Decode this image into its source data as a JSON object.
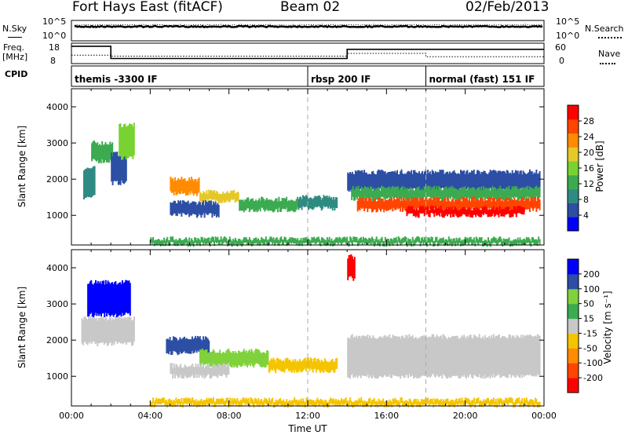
{
  "header": {
    "station": "Fort Hays East (fitACF)",
    "beam": "Beam 02",
    "date": "02/Feb/2013"
  },
  "noise_panel": {
    "left_label": "N.Sky",
    "right_label": "N.Search",
    "left_ticks": [
      "10^5",
      "10^0"
    ],
    "right_ticks": [
      "10^5",
      "10^0"
    ]
  },
  "freq_panel": {
    "left_label_1": "Freq.",
    "left_label_2": "[MHz]",
    "right_label": "Nave",
    "left_ticks": [
      "18",
      "8"
    ],
    "right_ticks": [
      "60",
      "0"
    ],
    "freq_steps": [
      {
        "t_start": 0.0,
        "t_end": 2.0,
        "mhz": 16.5
      },
      {
        "t_start": 2.0,
        "t_end": 14.0,
        "mhz": 10.5
      },
      {
        "t_start": 14.0,
        "t_end": 24.0,
        "mhz": 15.0
      }
    ],
    "nave_steps": [
      {
        "t_start": 0.0,
        "t_end": 2.0,
        "nave": 25
      },
      {
        "t_start": 2.0,
        "t_end": 14.0,
        "nave": 22
      },
      {
        "t_start": 14.0,
        "t_end": 18.0,
        "nave": 30
      },
      {
        "t_start": 18.0,
        "t_end": 24.0,
        "nave": 20
      }
    ]
  },
  "cpid": {
    "label": "CPID",
    "segments": [
      {
        "t_start": 0.0,
        "text": "themis -3300 IF"
      },
      {
        "t_start": 12.0,
        "text": "rbsp 200 IF"
      },
      {
        "t_start": 18.0,
        "text": "normal (fast) 151 IF"
      }
    ]
  },
  "chart_data": [
    {
      "type": "heatmap",
      "name": "power",
      "ylabel": "Slant Range [km]",
      "xlabel": "",
      "xlim": [
        0,
        24
      ],
      "ylim": [
        180,
        4500
      ],
      "yticks": [
        "1000",
        "2000",
        "3000",
        "4000"
      ],
      "colorbar_label": "Power [dB]",
      "colorbar_ticks": [
        "28",
        "24",
        "20",
        "16",
        "12",
        "8",
        "4"
      ],
      "colorbar_colors": [
        "#0000ff",
        "#2c4ea4",
        "#2e8b82",
        "#3cab50",
        "#78d232",
        "#e5c828",
        "#ff8c00",
        "#ff4500",
        "#ff0000"
      ],
      "bands": [
        {
          "t0": 0.6,
          "t1": 1.2,
          "r0": 1500,
          "r1": 2300,
          "c": "#2e8b82"
        },
        {
          "t0": 1.0,
          "t1": 2.1,
          "r0": 2500,
          "r1": 3000,
          "c": "#3cab50"
        },
        {
          "t0": 2.0,
          "t1": 2.8,
          "r0": 1900,
          "r1": 2700,
          "c": "#2c4ea4"
        },
        {
          "t0": 2.4,
          "t1": 3.2,
          "r0": 2600,
          "r1": 3500,
          "c": "#78d232"
        },
        {
          "t0": 5.0,
          "t1": 6.5,
          "r0": 1600,
          "r1": 2000,
          "c": "#ff8c00"
        },
        {
          "t0": 6.5,
          "t1": 8.5,
          "r0": 1400,
          "r1": 1650,
          "c": "#e5c828"
        },
        {
          "t0": 5.0,
          "t1": 7.5,
          "r0": 1000,
          "r1": 1350,
          "c": "#2c4ea4"
        },
        {
          "t0": 8.5,
          "t1": 11.5,
          "r0": 1150,
          "r1": 1450,
          "c": "#3cab50"
        },
        {
          "t0": 11.5,
          "t1": 13.5,
          "r0": 1200,
          "r1": 1500,
          "c": "#2e8b82"
        },
        {
          "t0": 14.0,
          "t1": 23.8,
          "r0": 1700,
          "r1": 2200,
          "c": "#2c4ea4"
        },
        {
          "t0": 14.2,
          "t1": 23.8,
          "r0": 1450,
          "r1": 1750,
          "c": "#3cab50"
        },
        {
          "t0": 14.5,
          "t1": 23.8,
          "r0": 1150,
          "r1": 1450,
          "c": "#ff4500"
        },
        {
          "t0": 17.0,
          "t1": 23.0,
          "r0": 1000,
          "r1": 1200,
          "c": "#ff0000"
        },
        {
          "t0": 4.0,
          "t1": 23.8,
          "r0": 200,
          "r1": 350,
          "c": "#3cab50"
        }
      ]
    },
    {
      "type": "heatmap",
      "name": "velocity",
      "ylabel": "Slant Range [km]",
      "xlabel": "Time UT",
      "xlim": [
        0,
        24
      ],
      "ylim": [
        180,
        4500
      ],
      "yticks": [
        "1000",
        "2000",
        "3000",
        "4000"
      ],
      "xticks": [
        "00:00",
        "04:00",
        "08:00",
        "12:00",
        "16:00",
        "20:00",
        "00:00"
      ],
      "colorbar_label": "Velocity [m s⁻¹]",
      "colorbar_ticks": [
        "200",
        "100",
        "50",
        "15",
        "-15",
        "-50",
        "-100",
        "-200"
      ],
      "colorbar_colors": [
        "#ff0000",
        "#ff4500",
        "#ff8c00",
        "#f5c400",
        "#c8c8c8",
        "#3cab50",
        "#7fd23c",
        "#2c4ea4",
        "#0000ff"
      ],
      "bands": [
        {
          "t0": 0.5,
          "t1": 3.2,
          "r0": 1900,
          "r1": 2600,
          "c": "#c8c8c8"
        },
        {
          "t0": 0.8,
          "t1": 3.0,
          "r0": 2700,
          "r1": 3600,
          "c": "#0000ff"
        },
        {
          "t0": 4.8,
          "t1": 7.0,
          "r0": 1650,
          "r1": 2050,
          "c": "#2c4ea4"
        },
        {
          "t0": 6.5,
          "t1": 10.0,
          "r0": 1300,
          "r1": 1700,
          "c": "#7fd23c"
        },
        {
          "t0": 5.0,
          "t1": 8.0,
          "r0": 1000,
          "r1": 1300,
          "c": "#c8c8c8"
        },
        {
          "t0": 10.0,
          "t1": 13.5,
          "r0": 1150,
          "r1": 1450,
          "c": "#f5c400"
        },
        {
          "t0": 14.0,
          "t1": 23.8,
          "r0": 1000,
          "r1": 2100,
          "c": "#c8c8c8"
        },
        {
          "t0": 14.0,
          "t1": 14.4,
          "r0": 3700,
          "r1": 4300,
          "c": "#ff0000"
        },
        {
          "t0": 4.0,
          "t1": 23.8,
          "r0": 200,
          "r1": 350,
          "c": "#f5c400"
        }
      ]
    }
  ]
}
